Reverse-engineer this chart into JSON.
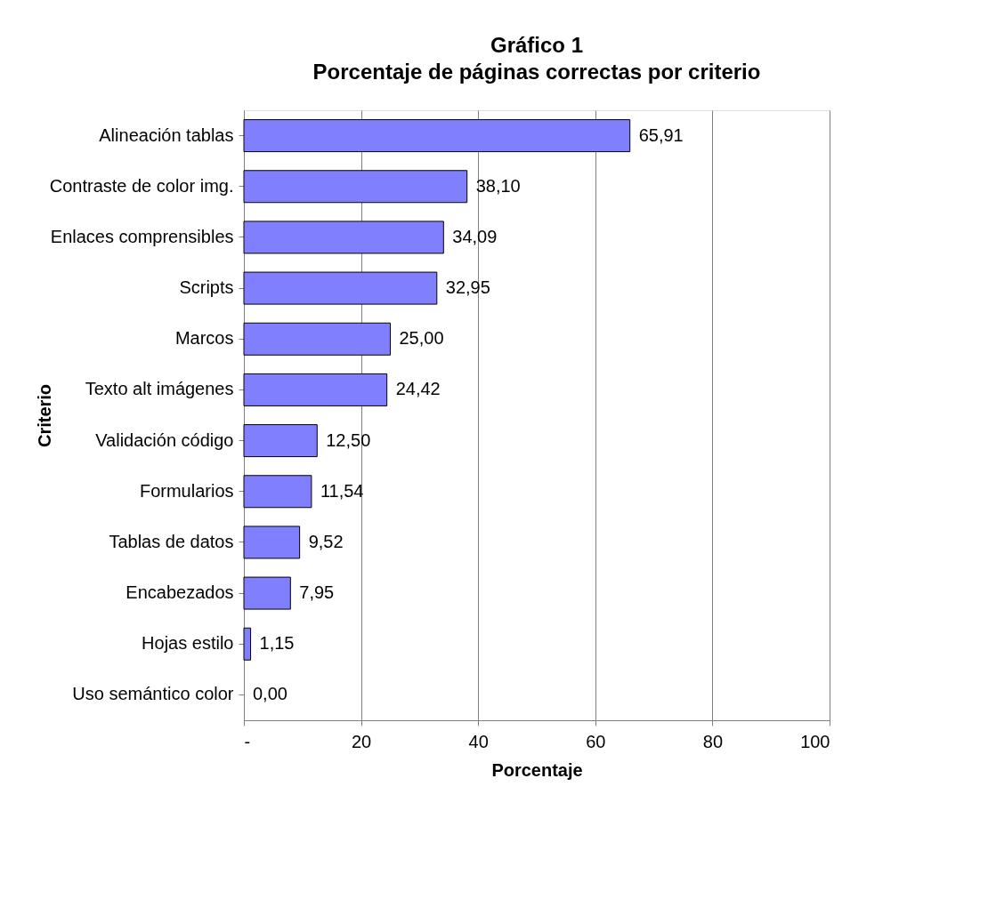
{
  "chart_data": {
    "type": "bar",
    "orientation": "horizontal",
    "title": "Gráfico 1",
    "subtitle": "Porcentaje de páginas correctas por criterio",
    "xlabel": "Porcentaje",
    "ylabel": "Criterio",
    "categories": [
      "Alineación tablas",
      "Contraste de color img.",
      "Enlaces comprensibles",
      "Scripts",
      "Marcos",
      "Texto alt imágenes",
      "Validación código",
      "Formularios",
      "Tablas de datos",
      "Encabezados",
      "Hojas estilo",
      "Uso semántico color"
    ],
    "values": [
      65.91,
      38.1,
      34.09,
      32.95,
      25.0,
      24.42,
      12.5,
      11.54,
      9.52,
      7.95,
      1.15,
      0.0
    ],
    "value_labels": [
      "65,91",
      "38,10",
      "34,09",
      "32,95",
      "25,00",
      "24,42",
      "12,50",
      "11,54",
      "9,52",
      "7,95",
      "1,15",
      "0,00"
    ],
    "color": "#8080ff",
    "xlim": [
      0,
      100
    ],
    "xticks": [
      {
        "value": 0,
        "label": "-"
      },
      20,
      40,
      60,
      80,
      100
    ],
    "grid": "x"
  }
}
